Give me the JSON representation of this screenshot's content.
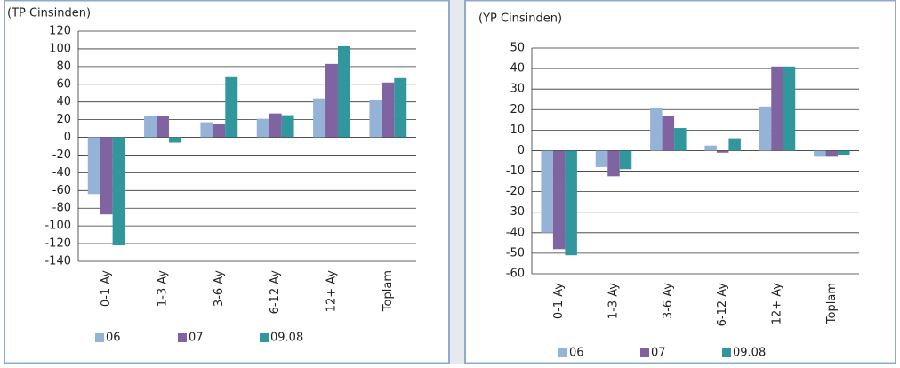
{
  "chart_data": [
    {
      "type": "bar",
      "subtitle": "(TP Cinsinden)",
      "categories": [
        "0-1 Ay",
        "1-3 Ay",
        "3-6 Ay",
        "6-12 Ay",
        "12+ Ay",
        "Toplam"
      ],
      "series": [
        {
          "name": "06",
          "color": "#95b3d7",
          "values": [
            -64,
            24,
            17,
            21,
            44,
            42
          ]
        },
        {
          "name": "07",
          "color": "#8064a2",
          "values": [
            -87,
            24,
            15,
            27,
            83,
            62
          ]
        },
        {
          "name": "09.08",
          "color": "#31979c",
          "values": [
            -122,
            -6,
            68,
            25,
            103,
            67
          ]
        }
      ],
      "ylim": [
        -140,
        120
      ],
      "yticks": [
        -140,
        -120,
        -100,
        -80,
        -60,
        -40,
        -20,
        0,
        20,
        40,
        60,
        80,
        100,
        120
      ],
      "grid": true
    },
    {
      "type": "bar",
      "subtitle": "(YP Cinsinden)",
      "categories": [
        "0-1 Ay",
        "1-3 Ay",
        "3-6 Ay",
        "6-12 Ay",
        "12+ Ay",
        "Toplam"
      ],
      "series": [
        {
          "name": "06",
          "color": "#95b3d7",
          "values": [
            -40,
            -8,
            21,
            2.5,
            21.5,
            -3
          ]
        },
        {
          "name": "07",
          "color": "#8064a2",
          "values": [
            -48,
            -12.5,
            17,
            -1,
            41,
            -3
          ]
        },
        {
          "name": "09.08",
          "color": "#31979c",
          "values": [
            -51,
            -9,
            11,
            6,
            41,
            -2
          ]
        }
      ],
      "ylim": [
        -60,
        50
      ],
      "yticks": [
        -60,
        -50,
        -40,
        -30,
        -20,
        -10,
        0,
        10,
        20,
        30,
        40,
        50
      ],
      "grid": true
    }
  ]
}
